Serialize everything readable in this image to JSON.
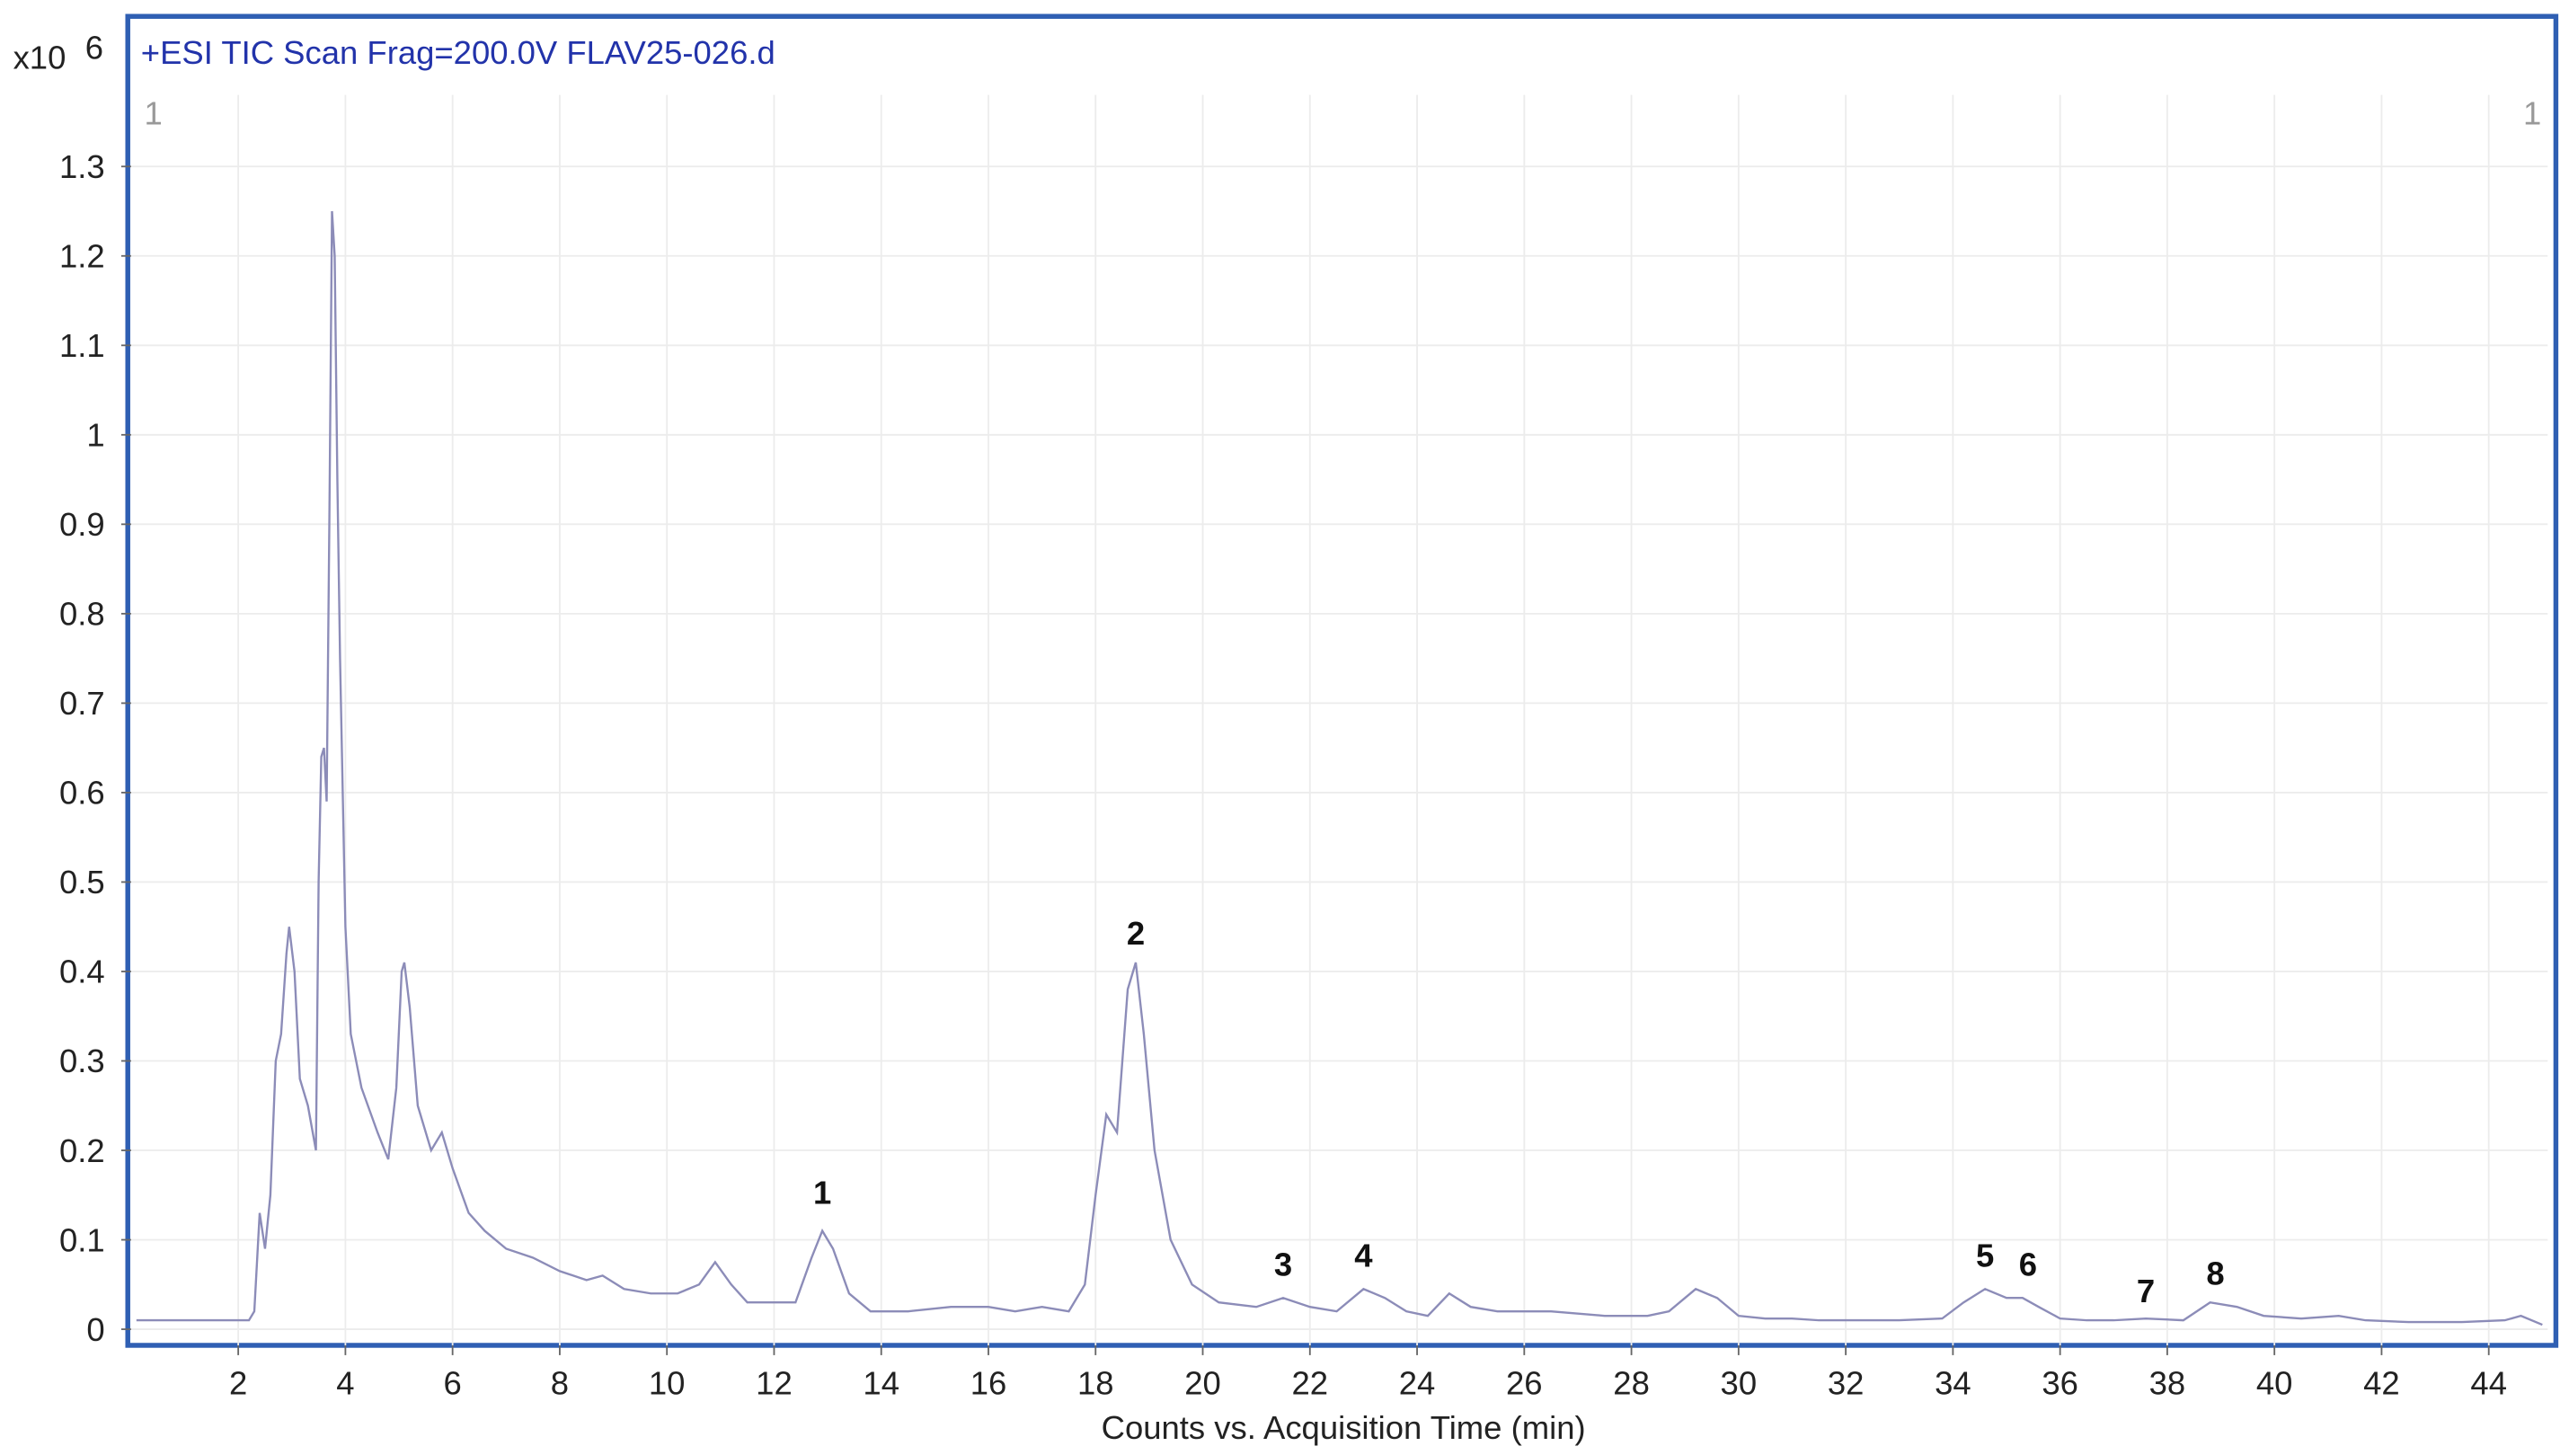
{
  "chart_data": {
    "type": "line",
    "title": "+ESI TIC Scan Frag=200.0V FLAV25-026.d",
    "y_multiplier": {
      "base": "x10",
      "exponent": "6"
    },
    "corner_labels": [
      "1",
      "1"
    ],
    "xlabel": "Counts vs. Acquisition Time (min)",
    "xlim": [
      0,
      45.1
    ],
    "ylim": [
      -0.018,
      1.38
    ],
    "xticks": [
      2,
      4,
      6,
      8,
      10,
      12,
      14,
      16,
      18,
      20,
      22,
      24,
      26,
      28,
      30,
      32,
      34,
      36,
      38,
      40,
      42,
      44
    ],
    "yticks": [
      0,
      0.1,
      0.2,
      0.3,
      0.4,
      0.5,
      0.6,
      0.7,
      0.8,
      0.9,
      1,
      1.1,
      1.2,
      1.3
    ],
    "grid": true,
    "series": [
      {
        "name": "TIC",
        "color": "#8c8cb8",
        "x": [
          0.1,
          2.2,
          2.3,
          2.4,
          2.5,
          2.6,
          2.7,
          2.8,
          2.9,
          2.95,
          3.05,
          3.15,
          3.3,
          3.45,
          3.5,
          3.55,
          3.6,
          3.65,
          3.7,
          3.75,
          3.8,
          3.85,
          3.9,
          4.0,
          4.1,
          4.3,
          4.6,
          4.8,
          4.95,
          5.05,
          5.1,
          5.2,
          5.35,
          5.6,
          5.8,
          6.0,
          6.3,
          6.6,
          7,
          7.5,
          8,
          8.5,
          8.8,
          9.2,
          9.7,
          10.2,
          10.6,
          10.9,
          11.2,
          11.5,
          12.0,
          12.4,
          12.7,
          12.9,
          13.1,
          13.4,
          13.8,
          14.5,
          15.3,
          16,
          16.5,
          17,
          17.5,
          17.8,
          18.0,
          18.2,
          18.4,
          18.6,
          18.75,
          18.9,
          19.1,
          19.4,
          19.8,
          20.3,
          21,
          21.5,
          22,
          22.5,
          23,
          23.4,
          23.8,
          24.2,
          24.6,
          25,
          25.5,
          26.5,
          27.5,
          28.3,
          28.7,
          29.2,
          29.6,
          30,
          30.5,
          31,
          31.5,
          32,
          33,
          33.8,
          34.2,
          34.6,
          35,
          35.3,
          35.6,
          36,
          36.5,
          37,
          37.6,
          38.3,
          38.8,
          39.3,
          39.8,
          40.5,
          41.2,
          41.7,
          42.5,
          43.5,
          44.3,
          44.6,
          45
        ],
        "values": [
          0.01,
          0.01,
          0.02,
          0.13,
          0.09,
          0.15,
          0.3,
          0.33,
          0.42,
          0.45,
          0.4,
          0.28,
          0.25,
          0.2,
          0.5,
          0.64,
          0.65,
          0.59,
          0.9,
          1.25,
          1.2,
          0.95,
          0.75,
          0.45,
          0.33,
          0.27,
          0.22,
          0.19,
          0.27,
          0.4,
          0.41,
          0.36,
          0.25,
          0.2,
          0.22,
          0.18,
          0.13,
          0.11,
          0.09,
          0.08,
          0.065,
          0.055,
          0.06,
          0.045,
          0.04,
          0.04,
          0.05,
          0.075,
          0.05,
          0.03,
          0.03,
          0.03,
          0.08,
          0.11,
          0.09,
          0.04,
          0.02,
          0.02,
          0.025,
          0.025,
          0.02,
          0.025,
          0.02,
          0.05,
          0.15,
          0.24,
          0.22,
          0.38,
          0.41,
          0.33,
          0.2,
          0.1,
          0.05,
          0.03,
          0.025,
          0.035,
          0.025,
          0.02,
          0.045,
          0.035,
          0.02,
          0.015,
          0.04,
          0.025,
          0.02,
          0.02,
          0.015,
          0.015,
          0.02,
          0.045,
          0.035,
          0.015,
          0.012,
          0.012,
          0.01,
          0.01,
          0.01,
          0.012,
          0.03,
          0.045,
          0.035,
          0.035,
          0.025,
          0.012,
          0.01,
          0.01,
          0.012,
          0.01,
          0.03,
          0.025,
          0.015,
          0.012,
          0.015,
          0.01,
          0.008,
          0.008,
          0.01,
          0.015,
          0.005
        ]
      }
    ],
    "annotations": [
      {
        "text": "1",
        "x": 12.9,
        "y": 0.14
      },
      {
        "text": "2",
        "x": 18.75,
        "y": 0.43
      },
      {
        "text": "3",
        "x": 21.5,
        "y": 0.06
      },
      {
        "text": "4",
        "x": 23.0,
        "y": 0.07
      },
      {
        "text": "5",
        "x": 34.6,
        "y": 0.07
      },
      {
        "text": "6",
        "x": 35.4,
        "y": 0.06
      },
      {
        "text": "7",
        "x": 37.6,
        "y": 0.03
      },
      {
        "text": "8",
        "x": 38.9,
        "y": 0.05
      }
    ]
  }
}
